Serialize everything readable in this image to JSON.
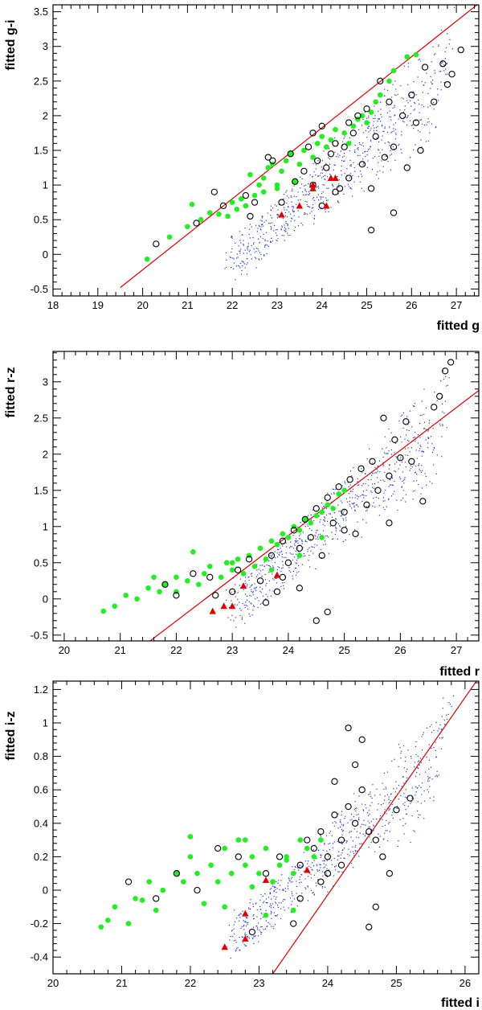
{
  "chart_data": [
    {
      "type": "scatter",
      "title": "",
      "xlabel": "fitted g",
      "ylabel": "fitted g-i",
      "xlim": [
        18,
        27.5
      ],
      "ylim": [
        -0.6,
        3.6
      ],
      "xticks": [
        18,
        19,
        20,
        21,
        22,
        23,
        24,
        25,
        26,
        27
      ],
      "xtick_labels": [
        "18",
        "19",
        "20",
        "21",
        "22",
        "23",
        "24",
        "25",
        "26",
        "27"
      ],
      "yticks": [
        -0.5,
        0,
        0.5,
        1,
        1.5,
        2,
        2.5,
        3,
        3.5
      ],
      "ytick_labels": [
        "-0.5",
        "0",
        "0.5",
        "1",
        "1.5",
        "2",
        "2.5",
        "3",
        "3.5"
      ],
      "line": {
        "name": "selection line",
        "color": "#e00000",
        "x": [
          19.5,
          27.5
        ],
        "y": [
          -0.48,
          3.62
        ]
      },
      "series": [
        {
          "name": "green filled",
          "marker": "filled-circle",
          "color": "#22ee22",
          "x": [
            20.1,
            20.6,
            21.0,
            21.1,
            21.3,
            21.5,
            21.9,
            22.0,
            22.1,
            22.3,
            22.4,
            22.5,
            22.6,
            22.7,
            22.8,
            22.9,
            23.0,
            23.1,
            23.2,
            23.3,
            23.5,
            23.6,
            23.8,
            23.9,
            24.1,
            24.2,
            24.3,
            24.5,
            24.7,
            24.9,
            25.0,
            25.1,
            25.3,
            25.5,
            25.6,
            25.9,
            26.1,
            22.7,
            23.4,
            24.0,
            24.6,
            22.2,
            23.0,
            21.7,
            24.8,
            25.2
          ],
          "y": [
            -0.07,
            0.25,
            0.4,
            0.72,
            0.5,
            0.6,
            0.55,
            0.75,
            0.65,
            0.7,
            1.15,
            0.85,
            1.0,
            1.1,
            1.25,
            1.3,
            1.0,
            1.2,
            1.35,
            1.45,
            1.3,
            1.5,
            1.4,
            1.6,
            1.55,
            1.65,
            1.8,
            1.75,
            1.85,
            2.0,
            1.9,
            2.05,
            2.3,
            2.5,
            2.65,
            2.85,
            2.88,
            0.9,
            1.05,
            1.7,
            1.6,
            0.8,
            0.95,
            0.58,
            1.95,
            2.2
          ]
        },
        {
          "name": "black open",
          "marker": "open-circle",
          "color": "#000000",
          "x": [
            20.3,
            21.2,
            21.6,
            21.8,
            22.3,
            22.4,
            22.5,
            22.9,
            23.1,
            23.3,
            23.4,
            23.6,
            23.7,
            23.8,
            23.9,
            24.0,
            24.1,
            24.2,
            24.3,
            24.4,
            24.5,
            24.6,
            24.7,
            24.8,
            24.9,
            25.0,
            25.1,
            25.2,
            25.3,
            25.4,
            25.5,
            25.6,
            25.8,
            25.9,
            26.0,
            26.1,
            26.3,
            26.5,
            26.7,
            26.8,
            26.9,
            27.1,
            24.0,
            24.3,
            25.6,
            25.1,
            23.8,
            24.6,
            22.8,
            26.2
          ],
          "y": [
            0.15,
            0.45,
            0.9,
            0.7,
            0.85,
            0.55,
            0.75,
            1.35,
            0.75,
            1.45,
            1.05,
            1.2,
            1.55,
            1.0,
            1.35,
            1.85,
            1.25,
            1.45,
            1.6,
            0.95,
            1.55,
            1.1,
            1.75,
            2.0,
            1.3,
            2.1,
            0.95,
            1.7,
            2.5,
            1.4,
            2.2,
            1.55,
            2.0,
            1.25,
            2.3,
            1.9,
            2.7,
            2.2,
            2.75,
            2.45,
            2.6,
            2.95,
            0.7,
            0.9,
            0.6,
            0.35,
            1.75,
            1.9,
            1.4,
            1.5
          ]
        },
        {
          "name": "red triangle",
          "marker": "filled-triangle",
          "color": "#e00000",
          "x": [
            23.1,
            23.5,
            23.8,
            24.1,
            24.2,
            24.3,
            23.8
          ],
          "y": [
            0.57,
            0.7,
            0.95,
            0.7,
            1.1,
            1.1,
            1.0
          ]
        }
      ]
    },
    {
      "type": "scatter",
      "title": "",
      "xlabel": "fitted r",
      "ylabel": "fitted r-z",
      "xlim": [
        19.8,
        27.4
      ],
      "ylim": [
        -0.58,
        3.42
      ],
      "xticks": [
        20,
        21,
        22,
        23,
        24,
        25,
        26,
        27
      ],
      "xtick_labels": [
        "20",
        "21",
        "22",
        "23",
        "24",
        "25",
        "26",
        "27"
      ],
      "yticks": [
        -0.5,
        0,
        0.5,
        1,
        1.5,
        2,
        2.5,
        3
      ],
      "ytick_labels": [
        "-0.5",
        "0",
        "0.5",
        "1",
        "1.5",
        "2",
        "2.5",
        "3"
      ],
      "line": {
        "name": "selection line",
        "color": "#e00000",
        "x": [
          21.5,
          27.4
        ],
        "y": [
          -0.6,
          2.88
        ]
      },
      "series": [
        {
          "name": "green filled",
          "marker": "filled-circle",
          "color": "#22ee22",
          "x": [
            20.7,
            20.9,
            21.1,
            21.3,
            21.5,
            21.7,
            21.8,
            22.0,
            22.2,
            22.3,
            22.5,
            22.6,
            22.8,
            22.9,
            23.0,
            23.1,
            23.2,
            23.3,
            23.4,
            23.5,
            23.6,
            23.7,
            23.8,
            23.9,
            24.0,
            24.1,
            24.2,
            24.3,
            24.4,
            24.5,
            24.6,
            24.7,
            24.8,
            24.9,
            25.0,
            22.4,
            23.0,
            23.7,
            24.2,
            24.6,
            22.0,
            21.6
          ],
          "y": [
            -0.17,
            -0.1,
            0.05,
            0.0,
            0.15,
            0.1,
            0.2,
            0.3,
            0.25,
            0.65,
            0.35,
            0.45,
            0.3,
            0.5,
            0.4,
            0.55,
            0.35,
            0.6,
            0.45,
            0.7,
            0.55,
            0.8,
            0.75,
            0.9,
            0.85,
            1.0,
            0.95,
            1.1,
            1.05,
            1.15,
            1.2,
            1.3,
            1.25,
            1.45,
            1.5,
            0.2,
            0.5,
            0.4,
            0.6,
            0.85,
            0.1,
            0.3
          ]
        },
        {
          "name": "black open",
          "marker": "open-circle",
          "color": "#000000",
          "x": [
            21.8,
            22.0,
            22.3,
            22.6,
            22.7,
            23.0,
            23.1,
            23.3,
            23.5,
            23.7,
            23.8,
            23.9,
            24.0,
            24.1,
            24.2,
            24.3,
            24.4,
            24.5,
            24.6,
            24.7,
            24.8,
            24.9,
            25.0,
            25.1,
            25.2,
            25.3,
            25.4,
            25.5,
            25.6,
            25.7,
            25.8,
            25.9,
            26.0,
            26.1,
            26.2,
            26.4,
            26.6,
            26.7,
            26.8,
            26.9,
            24.7,
            24.2,
            23.6,
            25.0,
            25.8,
            24.5,
            23.9
          ],
          "y": [
            0.2,
            0.05,
            0.35,
            0.3,
            0.05,
            0.1,
            0.4,
            0.55,
            0.25,
            0.6,
            0.1,
            0.8,
            0.5,
            0.95,
            0.7,
            1.1,
            0.85,
            1.25,
            0.6,
            1.4,
            1.05,
            1.55,
            1.2,
            1.65,
            0.9,
            1.8,
            1.3,
            1.9,
            1.5,
            2.5,
            1.7,
            2.2,
            1.95,
            2.45,
            1.9,
            1.35,
            2.65,
            2.8,
            3.15,
            3.27,
            -0.18,
            0.15,
            -0.05,
            0.95,
            1.05,
            -0.3,
            0.3
          ]
        },
        {
          "name": "red triangle",
          "marker": "filled-triangle",
          "color": "#e00000",
          "x": [
            22.65,
            22.85,
            23.0,
            23.2,
            23.8
          ],
          "y": [
            -0.17,
            -0.1,
            -0.1,
            0.18,
            0.33
          ]
        }
      ]
    },
    {
      "type": "scatter",
      "title": "",
      "xlabel": "fitted i",
      "ylabel": "fitted i-z",
      "xlim": [
        20,
        26.2
      ],
      "ylim": [
        -0.5,
        1.25
      ],
      "xticks": [
        20,
        21,
        22,
        23,
        24,
        25,
        26
      ],
      "xtick_labels": [
        "20",
        "21",
        "22",
        "23",
        "24",
        "25",
        "26"
      ],
      "yticks": [
        -0.4,
        -0.2,
        0,
        0.2,
        0.4,
        0.6,
        0.8,
        1,
        1.2
      ],
      "ytick_labels": [
        "-0.4",
        "-0.2",
        "0",
        "0.2",
        "0.4",
        "0.6",
        "0.8",
        "1",
        "1.2"
      ],
      "line": {
        "name": "selection line",
        "color": "#e00000",
        "x": [
          23.2,
          26.2
        ],
        "y": [
          -0.5,
          1.27
        ]
      },
      "series": [
        {
          "name": "green filled",
          "marker": "filled-circle",
          "color": "#22ee22",
          "x": [
            20.7,
            20.8,
            20.9,
            21.1,
            21.2,
            21.4,
            21.5,
            21.6,
            21.8,
            21.9,
            22.0,
            22.1,
            22.3,
            22.4,
            22.5,
            22.6,
            22.7,
            22.8,
            22.9,
            23.0,
            23.1,
            23.2,
            23.3,
            23.4,
            23.5,
            23.6,
            23.7,
            23.8,
            23.9,
            22.2,
            22.5,
            22.8,
            23.1,
            23.4,
            21.3,
            22.0,
            22.9,
            23.5
          ],
          "y": [
            -0.22,
            -0.18,
            -0.1,
            -0.2,
            -0.05,
            0.05,
            -0.12,
            0.0,
            0.1,
            0.05,
            0.2,
            0.1,
            0.15,
            0.05,
            0.25,
            0.1,
            0.3,
            0.15,
            0.2,
            0.1,
            0.25,
            0.05,
            0.15,
            0.2,
            0.1,
            0.3,
            0.25,
            0.2,
            0.3,
            -0.08,
            -0.1,
            0.3,
            -0.15,
            0.18,
            -0.06,
            0.32,
            0.02,
            -0.12
          ]
        },
        {
          "name": "black open",
          "marker": "open-circle",
          "color": "#000000",
          "x": [
            21.1,
            21.5,
            21.8,
            22.1,
            22.4,
            22.7,
            22.9,
            23.1,
            23.3,
            23.5,
            23.6,
            23.7,
            23.8,
            23.9,
            24.0,
            24.1,
            24.2,
            24.3,
            24.4,
            24.5,
            24.6,
            24.7,
            24.8,
            24.9,
            25.0,
            25.2,
            24.3,
            24.5,
            24.1,
            24.4,
            23.9,
            24.7,
            24.2,
            23.6,
            24.0,
            24.6
          ],
          "y": [
            0.05,
            -0.05,
            0.1,
            0.0,
            0.25,
            0.2,
            -0.25,
            0.1,
            0.2,
            -0.2,
            0.15,
            0.3,
            0.25,
            0.35,
            0.2,
            0.45,
            0.3,
            0.5,
            0.4,
            0.6,
            0.35,
            0.3,
            0.2,
            0.1,
            0.48,
            0.55,
            0.97,
            0.9,
            0.65,
            0.75,
            0.05,
            -0.1,
            0.15,
            -0.05,
            0.1,
            -0.22
          ]
        },
        {
          "name": "red triangle",
          "marker": "filled-triangle",
          "color": "#e00000",
          "x": [
            22.5,
            22.8,
            22.8,
            23.1,
            23.7
          ],
          "y": [
            -0.34,
            -0.29,
            -0.14,
            0.06,
            0.12
          ]
        }
      ]
    }
  ]
}
